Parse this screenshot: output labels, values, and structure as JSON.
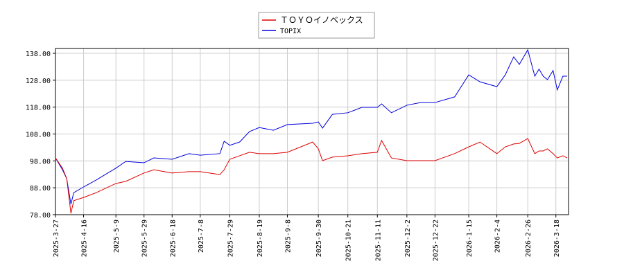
{
  "chart_data": {
    "type": "line",
    "x": [
      "2025-3-27",
      "2025-4-1",
      "2025-4-4",
      "2025-4-7",
      "2025-4-9",
      "2025-4-16",
      "2025-4-25",
      "2025-5-9",
      "2025-5-16",
      "2025-5-29",
      "2025-6-5",
      "2025-6-18",
      "2025-6-30",
      "2025-7-8",
      "2025-7-22",
      "2025-7-25",
      "2025-7-29",
      "2025-8-5",
      "2025-8-12",
      "2025-8-19",
      "2025-8-29",
      "2025-9-8",
      "2025-9-26",
      "2025-9-30",
      "2025-10-3",
      "2025-10-10",
      "2025-10-21",
      "2025-10-31",
      "2025-11-11",
      "2025-11-14",
      "2025-11-21",
      "2025-12-2",
      "2025-12-12",
      "2025-12-22",
      "2026-1-5",
      "2026-1-15",
      "2026-1-23",
      "2026-2-4",
      "2026-2-10",
      "2026-2-16",
      "2026-2-20",
      "2026-2-26",
      "2026-3-3",
      "2026-3-6",
      "2026-3-9",
      "2026-3-12",
      "2026-3-16",
      "2026-3-19",
      "2026-3-23",
      "2026-3-26"
    ],
    "series": [
      {
        "name": "ＴＯＹＯイノベックス",
        "color": "#dd0000",
        "values": [
          99.1,
          95.3,
          91.4,
          78.5,
          83.2,
          84.4,
          86.2,
          89.6,
          90.4,
          93.5,
          94.7,
          93.5,
          94,
          94,
          92.9,
          94.7,
          98.6,
          99.9,
          101.2,
          100.7,
          100.7,
          101.2,
          105,
          102.5,
          98.1,
          99.4,
          99.9,
          100.7,
          101.2,
          105.6,
          99.1,
          98.1,
          98.1,
          98.1,
          100.7,
          103.2,
          105,
          100.7,
          103.2,
          104.3,
          104.5,
          106.3,
          100.7,
          101.7,
          101.7,
          102.5,
          100.7,
          99.1,
          99.9,
          99.1
        ]
      },
      {
        "name": "TOPIX",
        "color": "#0000dd",
        "values": [
          99.1,
          94.7,
          91.4,
          81.9,
          86.2,
          88.3,
          90.9,
          95.3,
          97.8,
          97.3,
          99.1,
          98.6,
          100.7,
          100.1,
          100.7,
          105.3,
          103.8,
          105,
          108.9,
          110.4,
          109.4,
          111.5,
          112,
          112.5,
          110.2,
          115.3,
          115.9,
          117.9,
          117.9,
          119.2,
          115.9,
          118.7,
          119.7,
          119.7,
          121.8,
          130,
          127.4,
          125.6,
          130,
          136.7,
          133.9,
          139.3,
          129.5,
          132.1,
          129.5,
          128.2,
          131.6,
          124.4,
          129.5,
          129.5
        ]
      }
    ],
    "xlim": [
      "2025-3-27",
      "2026-3-27"
    ],
    "xticks": [
      "2025-3-27",
      "2025-4-16",
      "2025-5-9",
      "2025-5-29",
      "2025-6-18",
      "2025-7-8",
      "2025-7-29",
      "2025-8-19",
      "2025-9-8",
      "2025-9-30",
      "2025-10-21",
      "2025-11-11",
      "2025-12-2",
      "2025-12-22",
      "2026-1-15",
      "2026-2-4",
      "2026-2-26",
      "2026-3-18"
    ],
    "ylim": [
      78,
      139.8
    ],
    "yticks": [
      {
        "value": 78,
        "label": "78.00"
      },
      {
        "value": 88,
        "label": "88.00"
      },
      {
        "value": 98,
        "label": "98.00"
      },
      {
        "value": 108,
        "label": "108.00"
      },
      {
        "value": 118,
        "label": "118.00"
      },
      {
        "value": 128,
        "label": "128.00"
      },
      {
        "value": 138,
        "label": "138.00"
      }
    ],
    "grid": true
  }
}
